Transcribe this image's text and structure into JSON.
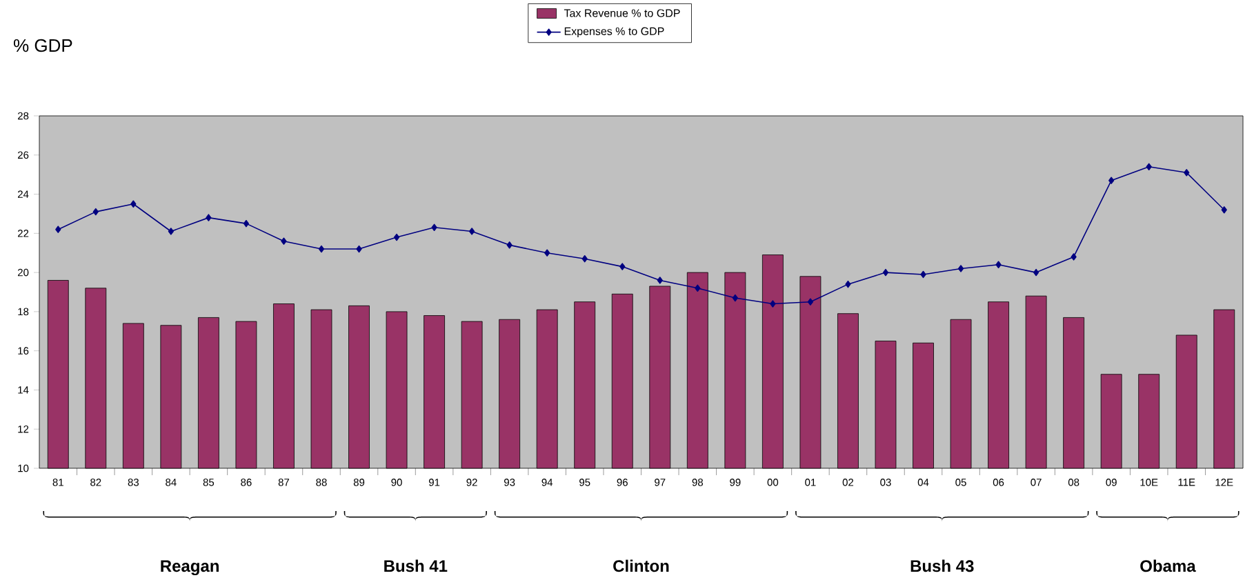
{
  "chart_data": {
    "type": "bar",
    "ylabel": "% GDP",
    "categories": [
      "81",
      "82",
      "83",
      "84",
      "85",
      "86",
      "87",
      "88",
      "89",
      "90",
      "91",
      "92",
      "93",
      "94",
      "95",
      "96",
      "97",
      "98",
      "99",
      "00",
      "01",
      "02",
      "03",
      "04",
      "05",
      "06",
      "07",
      "08",
      "09",
      "10E",
      "11E",
      "12E"
    ],
    "series": [
      {
        "name": "Tax Revenue % to GDP",
        "color": "#993366",
        "values": [
          19.6,
          19.2,
          17.4,
          17.3,
          17.7,
          17.5,
          18.4,
          18.1,
          18.3,
          18.0,
          17.8,
          17.5,
          17.6,
          18.1,
          18.5,
          18.9,
          19.3,
          20.0,
          20.0,
          20.9,
          19.8,
          17.9,
          16.5,
          16.4,
          17.6,
          18.5,
          18.8,
          17.7,
          14.8,
          14.8,
          16.8,
          18.1
        ]
      },
      {
        "name": "Expenses % to GDP",
        "type": "line",
        "color": "#000080",
        "marker": "diamond",
        "line_style": "solid",
        "values": [
          22.2,
          23.1,
          23.5,
          22.1,
          22.8,
          22.5,
          21.6,
          21.2,
          21.2,
          21.8,
          22.3,
          22.1,
          21.4,
          21.0,
          20.7,
          20.3,
          19.6,
          19.2,
          18.7,
          18.4,
          18.5,
          19.4,
          20.0,
          19.9,
          20.2,
          20.4,
          20.0,
          20.8,
          24.7,
          25.4,
          25.1,
          23.2
        ]
      }
    ],
    "ylim": [
      10,
      28
    ],
    "yticks": [
      10,
      12,
      14,
      16,
      18,
      20,
      22,
      24,
      26,
      28
    ],
    "legend": "top",
    "annotations": [
      "Reagan",
      "Bush 41",
      "Clinton",
      "Bush 43",
      "Obama"
    ]
  }
}
